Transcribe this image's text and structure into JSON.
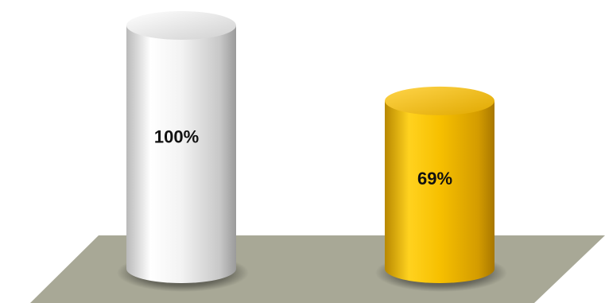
{
  "chart_data": {
    "type": "bar",
    "title": "",
    "xlabel": "",
    "ylabel": "",
    "ylim": [
      0,
      100
    ],
    "grid": false,
    "legend": "none",
    "categories": [
      "",
      ""
    ],
    "series": [
      {
        "values": [
          100,
          69
        ],
        "labels": [
          "100%",
          "69%"
        ]
      }
    ],
    "colors": {
      "bar_1": "#eeeeee",
      "bar_2": "#f2b500",
      "floor": "#a8a896"
    }
  }
}
